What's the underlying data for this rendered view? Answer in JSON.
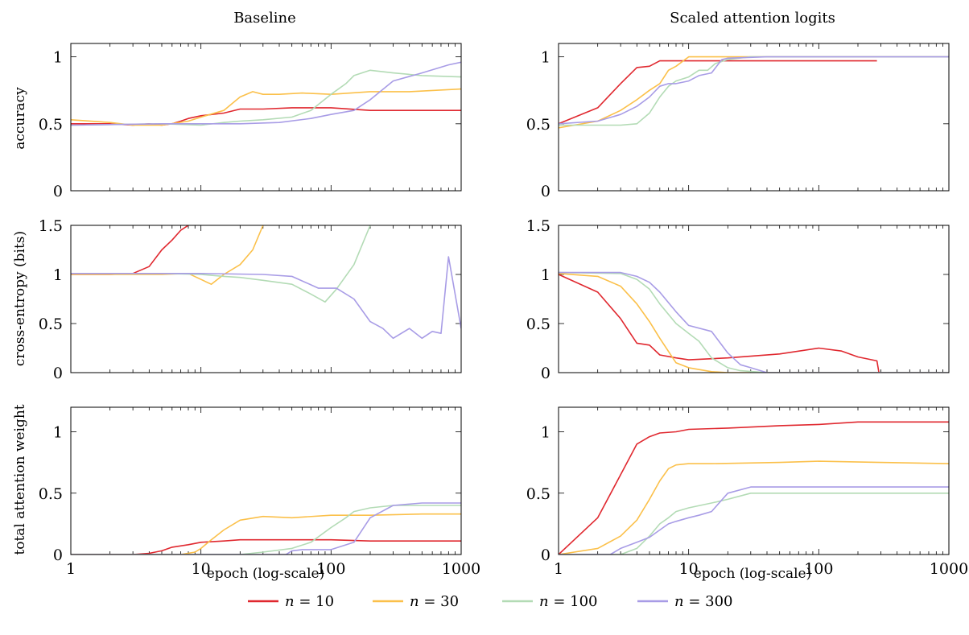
{
  "colors": {
    "n10": "#e0282f",
    "n30": "#fbc04a",
    "n100": "#b3dbb5",
    "n300": "#a89ce6"
  },
  "legend": [
    {
      "key": "n10",
      "n_symbol": "n",
      "eq": " = 10"
    },
    {
      "key": "n30",
      "n_symbol": "n",
      "eq": " = 30"
    },
    {
      "key": "n100",
      "n_symbol": "n",
      "eq": " = 100"
    },
    {
      "key": "n300",
      "n_symbol": "n",
      "eq": " = 300"
    }
  ],
  "columns": {
    "left_title": "Baseline",
    "right_title": "Scaled attention logits"
  },
  "rows": {
    "accuracy": {
      "ylabel": "accuracy",
      "yticks": [
        "0",
        "0.5",
        "1"
      ]
    },
    "ce": {
      "ylabel": "cross-entropy (bits)",
      "yticks": [
        "0",
        "0.5",
        "1",
        "1.5"
      ]
    },
    "attn": {
      "ylabel": "total attention weight",
      "yticks": [
        "0",
        "0.5",
        "1"
      ]
    }
  },
  "xaxis": {
    "label": "epoch (log-scale)",
    "ticks": [
      "1",
      "10",
      "100",
      "1000"
    ]
  },
  "chart_data": [
    {
      "type": "line",
      "panel": "Baseline / accuracy",
      "x_scale": "log",
      "xlim": [
        1,
        1000
      ],
      "ylim": [
        0,
        1.1
      ],
      "series": [
        {
          "key": "n10",
          "name": "n = 10",
          "x": [
            1,
            2,
            3,
            4,
            5,
            6,
            7,
            8,
            10,
            15,
            20,
            30,
            50,
            100,
            200,
            400,
            1000
          ],
          "y": [
            0.5,
            0.5,
            0.49,
            0.5,
            0.49,
            0.5,
            0.52,
            0.54,
            0.56,
            0.58,
            0.61,
            0.61,
            0.62,
            0.62,
            0.6,
            0.6,
            0.6
          ]
        },
        {
          "key": "n30",
          "name": "n = 30",
          "x": [
            1,
            2,
            3,
            5,
            8,
            10,
            15,
            20,
            25,
            30,
            40,
            60,
            100,
            200,
            400,
            1000
          ],
          "y": [
            0.53,
            0.51,
            0.49,
            0.49,
            0.52,
            0.55,
            0.6,
            0.7,
            0.74,
            0.72,
            0.72,
            0.73,
            0.72,
            0.74,
            0.74,
            0.76
          ]
        },
        {
          "key": "n100",
          "name": "n = 100",
          "x": [
            1,
            5,
            10,
            15,
            20,
            30,
            50,
            70,
            100,
            130,
            150,
            200,
            300,
            500,
            1000
          ],
          "y": [
            0.49,
            0.5,
            0.49,
            0.51,
            0.52,
            0.53,
            0.55,
            0.6,
            0.72,
            0.8,
            0.86,
            0.9,
            0.88,
            0.86,
            0.85
          ]
        },
        {
          "key": "n300",
          "name": "n = 300",
          "x": [
            1,
            5,
            10,
            20,
            40,
            70,
            100,
            150,
            200,
            300,
            500,
            800,
            1000
          ],
          "y": [
            0.49,
            0.5,
            0.5,
            0.5,
            0.51,
            0.54,
            0.57,
            0.6,
            0.68,
            0.82,
            0.88,
            0.94,
            0.96
          ]
        }
      ]
    },
    {
      "type": "line",
      "panel": "Scaled attention logits / accuracy",
      "x_scale": "log",
      "xlim": [
        1,
        1000
      ],
      "ylim": [
        0,
        1.1
      ],
      "series": [
        {
          "key": "n10",
          "name": "n = 10",
          "x": [
            1,
            2,
            3,
            4,
            5,
            6,
            10,
            20,
            50,
            100,
            280
          ],
          "y": [
            0.5,
            0.62,
            0.8,
            0.92,
            0.93,
            0.97,
            0.97,
            0.97,
            0.97,
            0.97,
            0.97
          ]
        },
        {
          "key": "n30",
          "name": "n = 30",
          "x": [
            1,
            2,
            3,
            4,
            5,
            6,
            7,
            8,
            10,
            15,
            20,
            50,
            100,
            300,
            1000
          ],
          "y": [
            0.47,
            0.52,
            0.6,
            0.68,
            0.75,
            0.8,
            0.9,
            0.93,
            1.0,
            1.0,
            1.0,
            1.0,
            1.0,
            1.0,
            1.0
          ]
        },
        {
          "key": "n100",
          "name": "n = 100",
          "x": [
            1,
            2,
            3,
            4,
            5,
            6,
            7,
            8,
            10,
            12,
            14,
            16,
            20,
            30,
            50,
            1000
          ],
          "y": [
            0.49,
            0.49,
            0.49,
            0.5,
            0.58,
            0.7,
            0.78,
            0.82,
            0.85,
            0.9,
            0.9,
            0.95,
            0.98,
            1.0,
            1.0,
            1.0
          ]
        },
        {
          "key": "n300",
          "name": "n = 300",
          "x": [
            1,
            2,
            3,
            4,
            5,
            6,
            7,
            8,
            10,
            12,
            15,
            18,
            20,
            40,
            1000
          ],
          "y": [
            0.5,
            0.52,
            0.57,
            0.63,
            0.7,
            0.78,
            0.8,
            0.8,
            0.82,
            0.86,
            0.88,
            0.98,
            0.99,
            1.0,
            1.0
          ]
        }
      ]
    },
    {
      "type": "line",
      "panel": "Baseline / cross-entropy",
      "x_scale": "log",
      "xlim": [
        1,
        1000
      ],
      "ylim": [
        0,
        1.5
      ],
      "series": [
        {
          "key": "n10",
          "name": "n = 10",
          "x": [
            1,
            2,
            3,
            4,
            5,
            6,
            7,
            8
          ],
          "y": [
            1.0,
            1.0,
            1.01,
            1.08,
            1.25,
            1.35,
            1.45,
            1.5
          ]
        },
        {
          "key": "n30",
          "name": "n = 30",
          "x": [
            1,
            3,
            5,
            8,
            12,
            15,
            20,
            25,
            30
          ],
          "y": [
            1.0,
            1.0,
            1.0,
            1.01,
            0.9,
            1.0,
            1.1,
            1.25,
            1.5
          ]
        },
        {
          "key": "n100",
          "name": "n = 100",
          "x": [
            1,
            5,
            10,
            15,
            20,
            30,
            50,
            70,
            90,
            110,
            150,
            200
          ],
          "y": [
            1.01,
            1.01,
            1.0,
            0.98,
            0.97,
            0.94,
            0.9,
            0.8,
            0.72,
            0.85,
            1.1,
            1.5
          ]
        },
        {
          "key": "n300",
          "name": "n = 300",
          "x": [
            1,
            10,
            30,
            50,
            80,
            110,
            150,
            200,
            250,
            300,
            400,
            500,
            600,
            700,
            800,
            1000
          ],
          "y": [
            1.01,
            1.01,
            1.0,
            0.98,
            0.86,
            0.86,
            0.75,
            0.52,
            0.45,
            0.35,
            0.45,
            0.35,
            0.42,
            0.4,
            1.18,
            0.45
          ]
        }
      ]
    },
    {
      "type": "line",
      "panel": "Scaled attention logits / cross-entropy",
      "x_scale": "log",
      "xlim": [
        1,
        1000
      ],
      "ylim": [
        0,
        1.5
      ],
      "series": [
        {
          "key": "n10",
          "name": "n = 10",
          "x": [
            1,
            2,
            3,
            4,
            5,
            6,
            8,
            10,
            20,
            50,
            100,
            150,
            200,
            280,
            290
          ],
          "y": [
            1.0,
            0.82,
            0.55,
            0.3,
            0.28,
            0.18,
            0.15,
            0.13,
            0.15,
            0.19,
            0.25,
            0.22,
            0.16,
            0.12,
            0.0
          ]
        },
        {
          "key": "n30",
          "name": "n = 30",
          "x": [
            1,
            2,
            3,
            4,
            5,
            6,
            8,
            10,
            15,
            20,
            30,
            1000
          ],
          "y": [
            1.01,
            0.98,
            0.88,
            0.7,
            0.52,
            0.35,
            0.1,
            0.05,
            0.01,
            0.0,
            0.0,
            0.0
          ]
        },
        {
          "key": "n100",
          "name": "n = 100",
          "x": [
            1,
            3,
            4,
            5,
            6,
            8,
            10,
            12,
            15,
            20,
            25,
            40,
            1000
          ],
          "y": [
            1.02,
            1.01,
            0.95,
            0.85,
            0.7,
            0.5,
            0.4,
            0.32,
            0.15,
            0.05,
            0.02,
            0.0,
            0.0
          ]
        },
        {
          "key": "n300",
          "name": "n = 300",
          "x": [
            1,
            2,
            3,
            4,
            5,
            6,
            8,
            10,
            15,
            20,
            25,
            30,
            40,
            1000
          ],
          "y": [
            1.02,
            1.02,
            1.02,
            0.98,
            0.92,
            0.82,
            0.62,
            0.48,
            0.42,
            0.2,
            0.08,
            0.05,
            0.0,
            0.0
          ]
        }
      ]
    },
    {
      "type": "line",
      "panel": "Baseline / total attention weight",
      "x_scale": "log",
      "xlim": [
        1,
        1000
      ],
      "ylim": [
        0,
        1.2
      ],
      "series": [
        {
          "key": "n10",
          "name": "n = 10",
          "x": [
            1,
            2,
            3,
            4,
            5,
            6,
            8,
            10,
            15,
            20,
            50,
            100,
            200,
            400,
            1000
          ],
          "y": [
            0.0,
            0.0,
            0.0,
            0.01,
            0.03,
            0.06,
            0.08,
            0.1,
            0.11,
            0.12,
            0.12,
            0.12,
            0.11,
            0.11,
            0.11
          ]
        },
        {
          "key": "n30",
          "name": "n = 30",
          "x": [
            1,
            7,
            9,
            10,
            12,
            15,
            20,
            30,
            50,
            100,
            200,
            500,
            1000
          ],
          "y": [
            0.0,
            0.0,
            0.02,
            0.05,
            0.12,
            0.2,
            0.28,
            0.31,
            0.3,
            0.32,
            0.32,
            0.33,
            0.33
          ]
        },
        {
          "key": "n100",
          "name": "n = 100",
          "x": [
            1,
            20,
            30,
            50,
            70,
            100,
            130,
            150,
            200,
            300,
            500,
            1000
          ],
          "y": [
            0.0,
            0.0,
            0.02,
            0.05,
            0.1,
            0.22,
            0.3,
            0.35,
            0.38,
            0.4,
            0.4,
            0.4
          ]
        },
        {
          "key": "n300",
          "name": "n = 300",
          "x": [
            1,
            45,
            50,
            60,
            100,
            150,
            200,
            300,
            500,
            1000
          ],
          "y": [
            0.0,
            0.0,
            0.03,
            0.04,
            0.04,
            0.1,
            0.3,
            0.4,
            0.42,
            0.42
          ]
        }
      ]
    },
    {
      "type": "line",
      "panel": "Scaled attention logits / total attention weight",
      "x_scale": "log",
      "xlim": [
        1,
        1000
      ],
      "ylim": [
        0,
        1.2
      ],
      "series": [
        {
          "key": "n10",
          "name": "n = 10",
          "x": [
            1,
            2,
            3,
            4,
            5,
            6,
            8,
            10,
            20,
            50,
            100,
            200,
            500,
            1000
          ],
          "y": [
            0.0,
            0.3,
            0.65,
            0.9,
            0.96,
            0.99,
            1.0,
            1.02,
            1.03,
            1.05,
            1.06,
            1.08,
            1.08,
            1.08
          ]
        },
        {
          "key": "n30",
          "name": "n = 30",
          "x": [
            1,
            2,
            3,
            4,
            5,
            6,
            7,
            8,
            10,
            15,
            50,
            100,
            300,
            1000
          ],
          "y": [
            0.0,
            0.05,
            0.15,
            0.28,
            0.45,
            0.6,
            0.7,
            0.73,
            0.74,
            0.74,
            0.75,
            0.76,
            0.75,
            0.74
          ]
        },
        {
          "key": "n100",
          "name": "n = 100",
          "x": [
            1,
            3,
            4,
            5,
            6,
            7,
            8,
            10,
            15,
            20,
            30,
            50,
            1000
          ],
          "y": [
            0.0,
            0.0,
            0.05,
            0.15,
            0.25,
            0.3,
            0.35,
            0.38,
            0.42,
            0.45,
            0.5,
            0.5,
            0.5
          ]
        },
        {
          "key": "n300",
          "name": "n = 300",
          "x": [
            1,
            2.5,
            3,
            4,
            5,
            6,
            7,
            8,
            10,
            12,
            15,
            20,
            30,
            1000
          ],
          "y": [
            0.0,
            0.0,
            0.05,
            0.1,
            0.14,
            0.2,
            0.25,
            0.27,
            0.3,
            0.32,
            0.35,
            0.5,
            0.55,
            0.55
          ]
        }
      ]
    }
  ]
}
